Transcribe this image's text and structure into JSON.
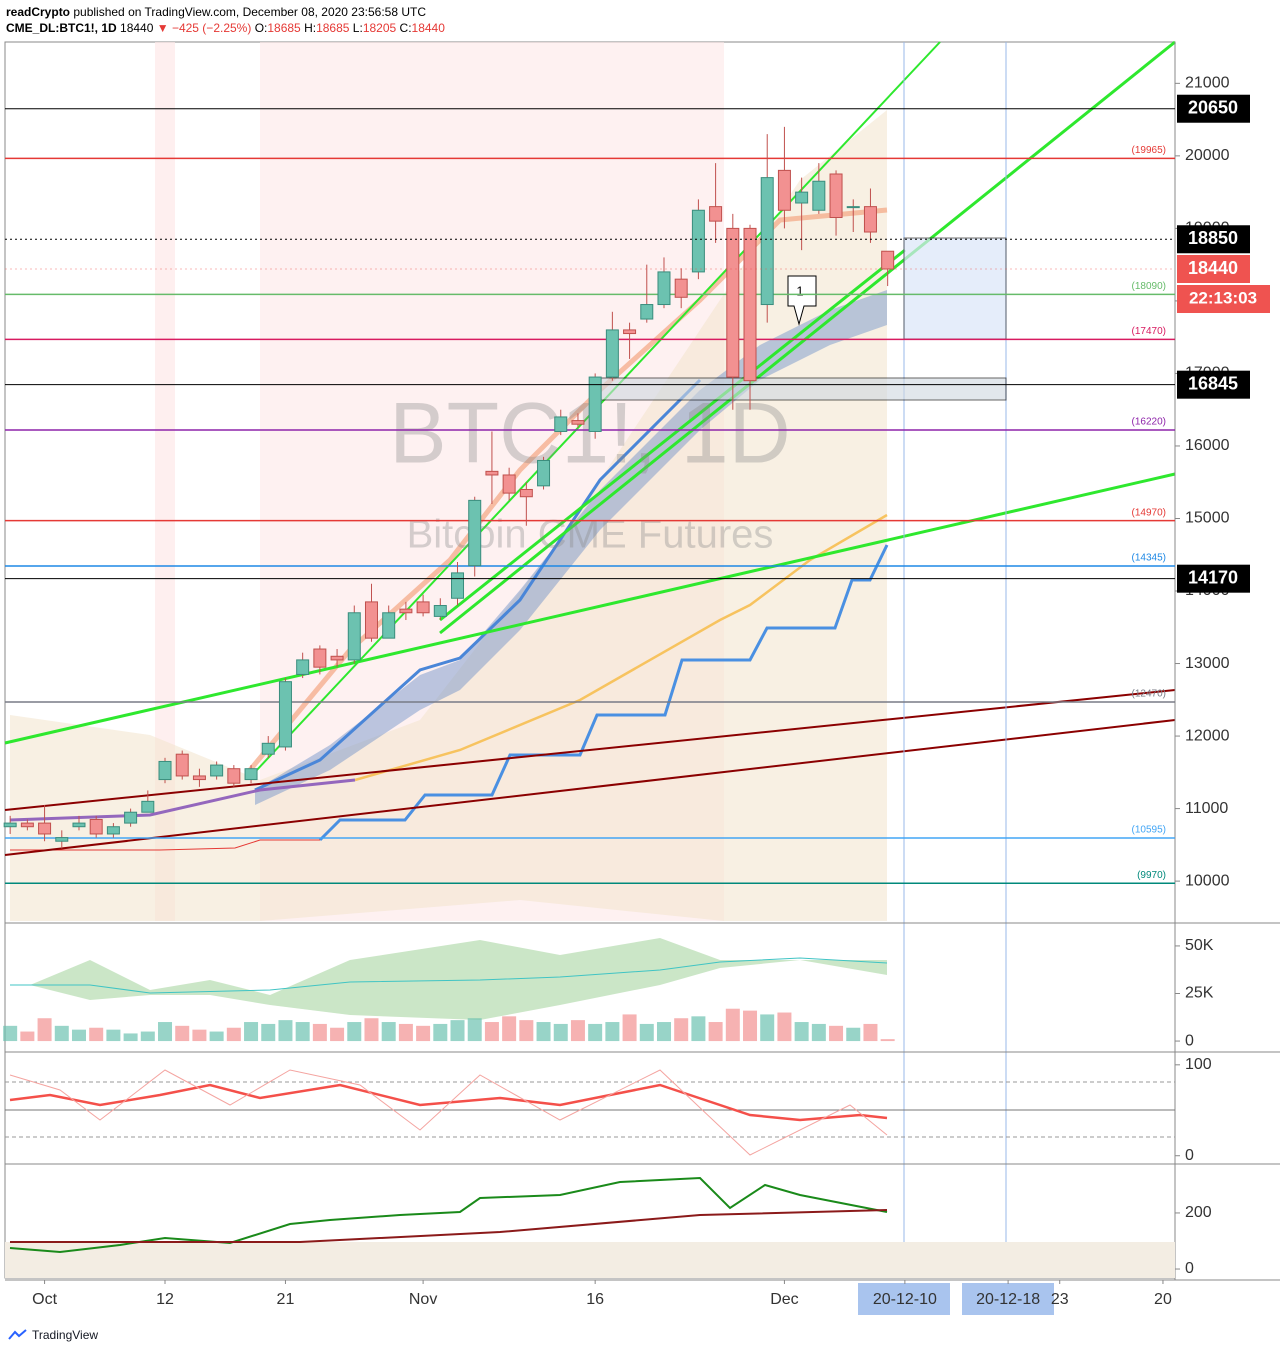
{
  "header": {
    "author": "readCrypto",
    "published": "published on TradingView.com, December 08, 2020 23:56:58 UTC",
    "symbol": "CME_DL:BTC1!, 1D",
    "last": "18440",
    "change": "▼ −425 (−2.25%)",
    "ohlc": [
      {
        "label": "O:",
        "value": "18685"
      },
      {
        "label": "H:",
        "value": "18685"
      },
      {
        "label": "L:",
        "value": "18205"
      },
      {
        "label": "C:",
        "value": "18440"
      }
    ]
  },
  "watermark": {
    "symbol": "BTC1!, 1D",
    "description": "Bitcoin CME Futures"
  },
  "chart_data": {
    "type": "candlestick",
    "open": [
      10750,
      10800,
      10800,
      10550,
      10750,
      10850,
      10650,
      10800,
      10950,
      11400,
      11750,
      11450,
      11450,
      11550,
      11400,
      11750,
      11850,
      12850,
      13200,
      13100,
      13050,
      13850,
      13350,
      13750,
      13850,
      13650,
      13900,
      14350,
      15650,
      15600,
      15400,
      15450,
      16200,
      16350,
      16200,
      16950,
      17600,
      17750,
      17950,
      18300,
      18400,
      19300,
      19000,
      19000,
      17950,
      19800,
      19350,
      19250,
      19750,
      19300,
      19300,
      18685
    ],
    "high": [
      10900,
      10850,
      11050,
      10700,
      10900,
      10900,
      10800,
      11000,
      11250,
      11700,
      11800,
      11550,
      11650,
      11600,
      11600,
      12000,
      12800,
      13150,
      13250,
      13200,
      13800,
      14100,
      13800,
      13850,
      13950,
      13900,
      14400,
      15300,
      16200,
      15700,
      15500,
      15850,
      16500,
      16450,
      17000,
      17850,
      17700,
      18500,
      18600,
      18450,
      19400,
      19900,
      19200,
      19050,
      20300,
      20400,
      19700,
      19900,
      19800,
      19400,
      19550,
      18685
    ],
    "low": [
      10650,
      10700,
      10550,
      10450,
      10700,
      10600,
      10600,
      10750,
      10950,
      11350,
      11400,
      11300,
      11400,
      11300,
      11350,
      11700,
      11800,
      12800,
      12850,
      12950,
      13000,
      13300,
      13350,
      13600,
      13650,
      13600,
      13800,
      14200,
      15200,
      15250,
      14900,
      15400,
      16150,
      16250,
      16100,
      16900,
      17200,
      17700,
      17900,
      17900,
      18300,
      18800,
      16500,
      16500,
      17700,
      19000,
      18700,
      19200,
      18900,
      18950,
      18800,
      18205
    ],
    "close": [
      10800,
      10750,
      10650,
      10600,
      10800,
      10650,
      10750,
      10950,
      11100,
      11650,
      11450,
      11400,
      11600,
      11350,
      11550,
      11900,
      12750,
      13050,
      12950,
      13050,
      13700,
      13350,
      13700,
      13700,
      13700,
      13800,
      14250,
      15250,
      15600,
      15350,
      15300,
      15800,
      16400,
      16300,
      16950,
      17600,
      17550,
      17950,
      18400,
      18050,
      19250,
      19100,
      16950,
      16900,
      19700,
      19250,
      19500,
      19650,
      19150,
      19300,
      18950,
      18440
    ],
    "up_color": "#6cc2b0",
    "down_color": "#f29191",
    "ylim": [
      9450,
      21570
    ],
    "yticks": [
      10000,
      11000,
      12000,
      13000,
      14000,
      15000,
      16000,
      17000,
      18000,
      19000,
      20000,
      21000
    ],
    "xlim": [
      -0.3,
      67.7
    ],
    "xticks": [
      {
        "value": 2,
        "label": "Oct"
      },
      {
        "value": 9,
        "label": "12"
      },
      {
        "value": 16,
        "label": "21"
      },
      {
        "value": 24,
        "label": "Nov"
      },
      {
        "value": 34,
        "label": "16"
      },
      {
        "value": 45,
        "label": "Dec"
      },
      {
        "value": 52,
        "label": "20-12-10"
      },
      {
        "value": 58,
        "label": "20-12-18"
      },
      {
        "value": 61,
        "label": "23"
      },
      {
        "value": 67,
        "label": "20"
      }
    ],
    "levels": [
      {
        "value": 19965,
        "label": "(19965)",
        "color": "#e53935"
      },
      {
        "value": 18090,
        "label": "(18090)",
        "color": "#66bb6a"
      },
      {
        "value": 17470,
        "label": "(17470)",
        "color": "#d81b60"
      },
      {
        "value": 16220,
        "label": "(16220)",
        "color": "#8e24aa"
      },
      {
        "value": 14970,
        "label": "(14970)",
        "color": "#e53935"
      },
      {
        "value": 14345,
        "label": "(14345)",
        "color": "#1e88e5"
      },
      {
        "value": 12470,
        "label": "(12470)",
        "color": "#787b86"
      },
      {
        "value": 10595,
        "label": "(10595)",
        "color": "#42a5f5"
      },
      {
        "value": 9970,
        "label": "(9970)",
        "color": "#00897b"
      }
    ],
    "price_labels": [
      {
        "value": 20650,
        "color": "#000000",
        "line": "solid"
      },
      {
        "value": 18850,
        "color": "#000000",
        "line": "dotted"
      },
      {
        "value": 18440,
        "color": "#ef5350",
        "line": "dotted"
      },
      {
        "value": 16845,
        "color": "#000000",
        "line": "solid"
      },
      {
        "value": 14170,
        "color": "#000000",
        "line": "solid"
      }
    ],
    "countdown": "22:13:03",
    "annotation": "1",
    "volume": {
      "values": [
        8000,
        5000,
        12000,
        8000,
        6000,
        7000,
        6000,
        4000,
        5000,
        10000,
        8000,
        6000,
        5000,
        7000,
        10000,
        9000,
        11000,
        10000,
        9000,
        7000,
        10000,
        12000,
        10000,
        9000,
        8000,
        9000,
        11000,
        12000,
        10000,
        13000,
        11000,
        10000,
        9000,
        11000,
        9000,
        10000,
        14000,
        9000,
        10000,
        12000,
        13000,
        10000,
        17000,
        16000,
        14000,
        15000,
        10000,
        9000,
        8000,
        7000,
        9000,
        1000
      ],
      "ylim": [
        -4700,
        61000
      ],
      "yticks": [
        {
          "value": 50000,
          "label": "50K"
        },
        {
          "value": 25000,
          "label": "25K"
        },
        0
      ]
    },
    "oscillator": {
      "ylim": [
        -8,
        113
      ],
      "yticks": [
        100,
        0
      ]
    },
    "indicator": {
      "ylim": [
        -32,
        371
      ],
      "yticks": [
        200,
        0
      ]
    }
  },
  "footer": {
    "brand": "TradingView"
  }
}
